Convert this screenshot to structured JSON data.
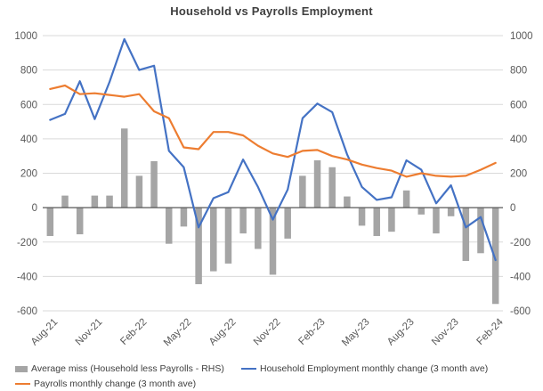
{
  "title": "Household vs Payrolls Employment",
  "colors": {
    "household_line": "#4472C4",
    "payrolls_line": "#ED7D31",
    "miss_bars": "#A5A5A5",
    "gridline": "#D9D9D9",
    "zero_line": "#595959",
    "axis_text": "#595959",
    "title_text": "#3F3F3F",
    "legend_text": "#404040",
    "background": "#FFFFFF"
  },
  "legend": [
    {
      "label": "Average miss (Household less Payrolls - RHS)",
      "swatch": "bar",
      "color": "#A5A5A5"
    },
    {
      "label": "Household Employment monthly change (3 month ave)",
      "swatch": "line",
      "color": "#4472C4"
    },
    {
      "label": "Payrolls monthly change (3 month ave)",
      "swatch": "line",
      "color": "#ED7D31"
    }
  ],
  "chart_data": {
    "type": "combo-bar-line",
    "title": "Household vs Payrolls Employment",
    "categories": [
      "Aug-21",
      "Sep-21",
      "Oct-21",
      "Nov-21",
      "Dec-21",
      "Jan-22",
      "Feb-22",
      "Mar-22",
      "Apr-22",
      "May-22",
      "Jun-22",
      "Jul-22",
      "Aug-22",
      "Sep-22",
      "Oct-22",
      "Nov-22",
      "Dec-22",
      "Jan-23",
      "Feb-23",
      "Mar-23",
      "Apr-23",
      "May-23",
      "Jun-23",
      "Jul-23",
      "Aug-23",
      "Sep-23",
      "Oct-23",
      "Nov-23",
      "Dec-23",
      "Jan-24",
      "Feb-24"
    ],
    "x_tick_labels": [
      "Aug-21",
      "Nov-21",
      "Feb-22",
      "May-22",
      "Aug-22",
      "Nov-22",
      "Feb-23",
      "May-23",
      "Aug-23",
      "Nov-23",
      "Feb-24"
    ],
    "x_tick_every": 3,
    "series": [
      {
        "name": "Average miss (Household less Payrolls - RHS)",
        "type": "bar",
        "color": "#A5A5A5",
        "values": [
          -165,
          70,
          -155,
          70,
          70,
          460,
          185,
          270,
          -210,
          -110,
          -445,
          -370,
          -325,
          -150,
          -240,
          -390,
          -180,
          185,
          275,
          235,
          65,
          -105,
          -165,
          -140,
          100,
          -40,
          -150,
          -50,
          -310,
          -265,
          -560
        ]
      },
      {
        "name": "Household Employment monthly change (3 month ave)",
        "type": "line",
        "color": "#4472C4",
        "values": [
          510,
          545,
          735,
          515,
          730,
          980,
          800,
          825,
          330,
          235,
          -115,
          55,
          90,
          280,
          120,
          -70,
          105,
          520,
          605,
          555,
          310,
          120,
          45,
          60,
          275,
          220,
          25,
          130,
          -115,
          -55,
          -305
        ]
      },
      {
        "name": "Payrolls monthly change (3 month ave)",
        "type": "line",
        "color": "#ED7D31",
        "values": [
          690,
          710,
          660,
          665,
          655,
          645,
          660,
          560,
          520,
          350,
          340,
          440,
          440,
          420,
          360,
          315,
          295,
          330,
          335,
          300,
          280,
          250,
          230,
          215,
          180,
          200,
          185,
          180,
          185,
          220,
          260
        ]
      }
    ],
    "y_axis": {
      "min": -600,
      "max": 1000,
      "step": 200,
      "left_labels": true,
      "right_labels": true
    },
    "grid": true,
    "legend_position": "bottom"
  }
}
